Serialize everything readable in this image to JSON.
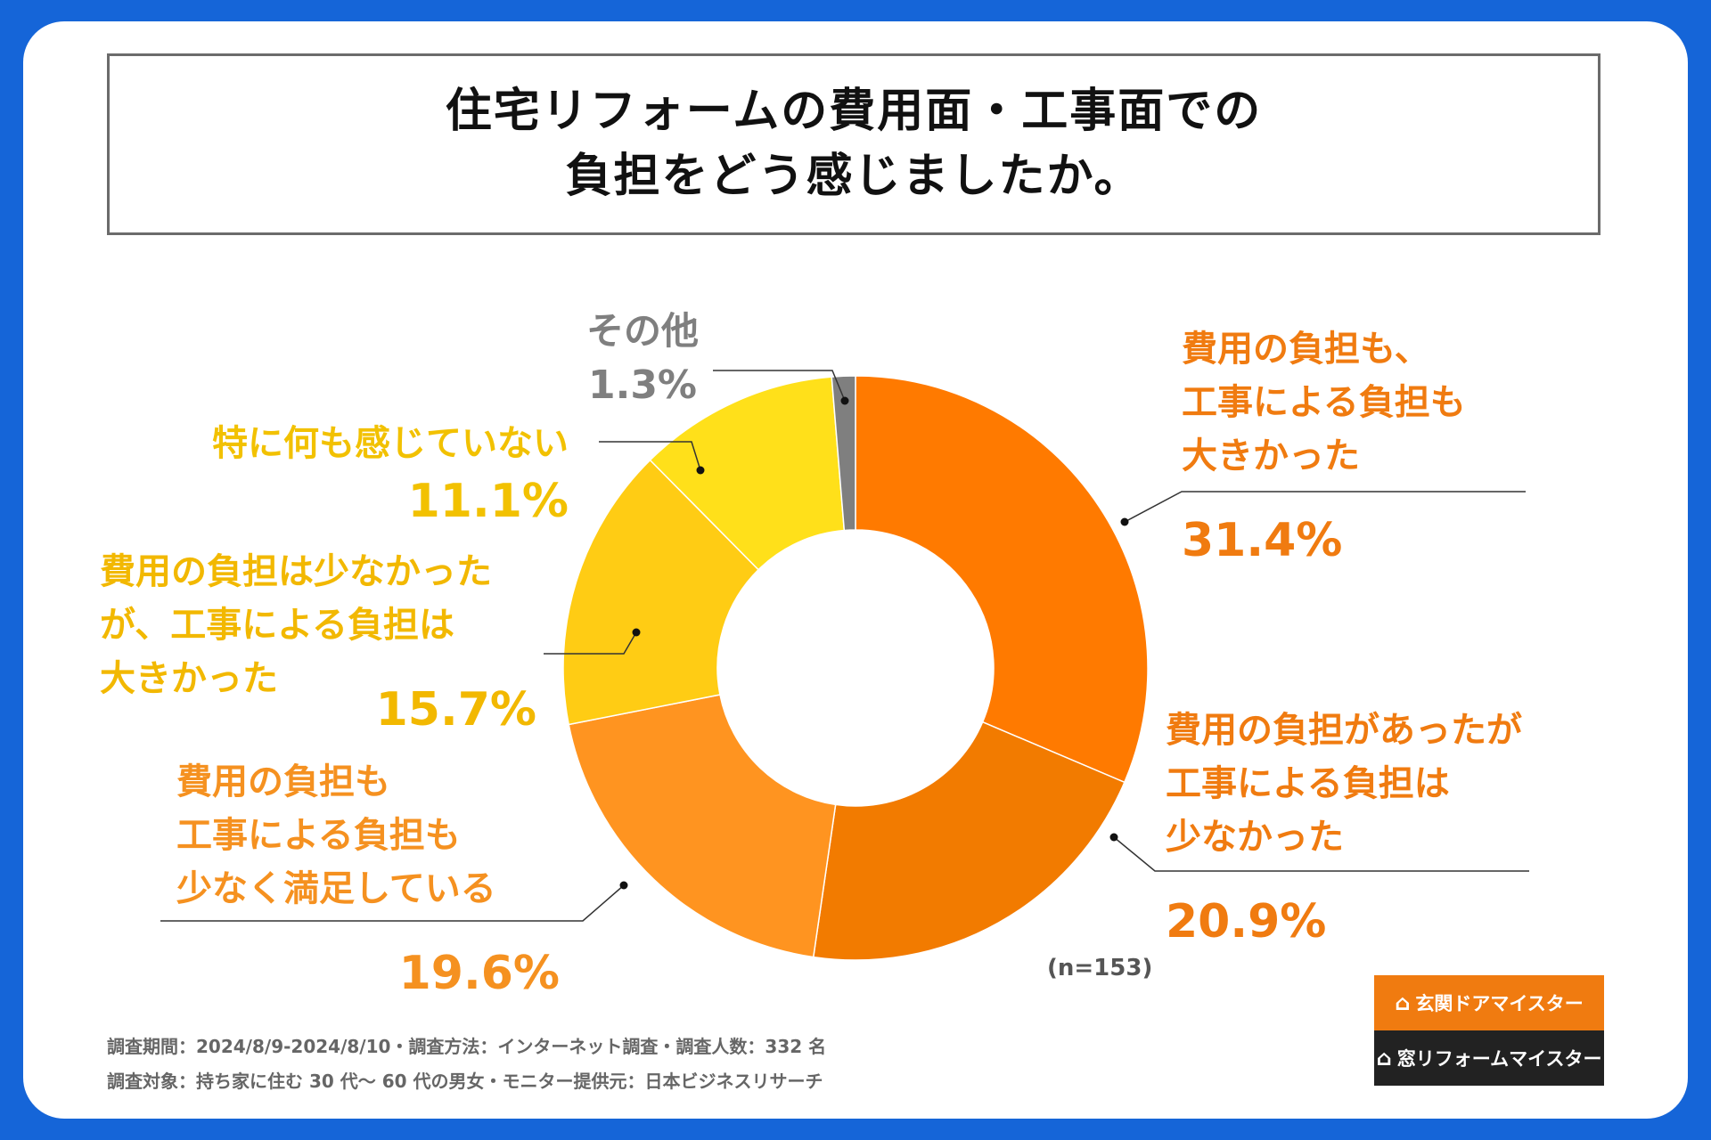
{
  "title": {
    "line1": "住宅リフォームの費用面・工事面での",
    "line2": "負担をどう感じましたか。"
  },
  "chart_data": {
    "type": "pie",
    "variant": "donut",
    "title": "住宅リフォームの費用面・工事面での負担をどう感じましたか。",
    "sample_note": "(n=153)",
    "slices": [
      {
        "label": "費用の負担も、工事による負担も大きかった",
        "label_lines": [
          "費用の負担も、",
          "工事による負担も",
          "大きかった"
        ],
        "value": 31.4,
        "value_text": "31.4%",
        "color": "#ff7a00",
        "text_color": "#f07b10"
      },
      {
        "label": "費用の負担があったが工事による負担は少なかった",
        "label_lines": [
          "費用の負担があったが",
          "工事による負担は",
          "少なかった"
        ],
        "value": 20.9,
        "value_text": "20.9%",
        "color": "#f27b00",
        "text_color": "#f07b10"
      },
      {
        "label": "費用の負担も工事による負担も少なく満足している",
        "label_lines": [
          "費用の負担も",
          "工事による負担も",
          "少なく満足している"
        ],
        "value": 19.6,
        "value_text": "19.6%",
        "color": "#ff9420",
        "text_color": "#f59120"
      },
      {
        "label": "費用の負担は少なかったが、工事による負担は大きかった",
        "label_lines": [
          "費用の負担は少なかった",
          "が、工事による負担は",
          "大きかった"
        ],
        "value": 15.7,
        "value_text": "15.7%",
        "color": "#ffcc14",
        "text_color": "#f2b800"
      },
      {
        "label": "特に何も感じていない",
        "label_lines": [
          "特に何も感じていない"
        ],
        "value": 11.1,
        "value_text": "11.1%",
        "color": "#ffe01a",
        "text_color": "#f2c100"
      },
      {
        "label": "その他",
        "label_lines": [
          "その他"
        ],
        "value": 1.3,
        "value_text": "1.3%",
        "color": "#7f7f7f",
        "text_color": "#7f7f7f"
      }
    ]
  },
  "footer": {
    "line1": "調査期間：2024/8/9-2024/8/10・調査方法：インターネット調査・調査人数：332 名",
    "line2": "調査対象：持ち家に住む 30 代～ 60 代の男女・モニター提供元：日本ビジネスリサーチ"
  },
  "logos": [
    {
      "text": "玄関ドアマイスター",
      "icon": "door-icon",
      "color": "#f07b10"
    },
    {
      "text": "窓リフォームマイスター",
      "icon": "house-icon",
      "color": "#222222"
    }
  ]
}
